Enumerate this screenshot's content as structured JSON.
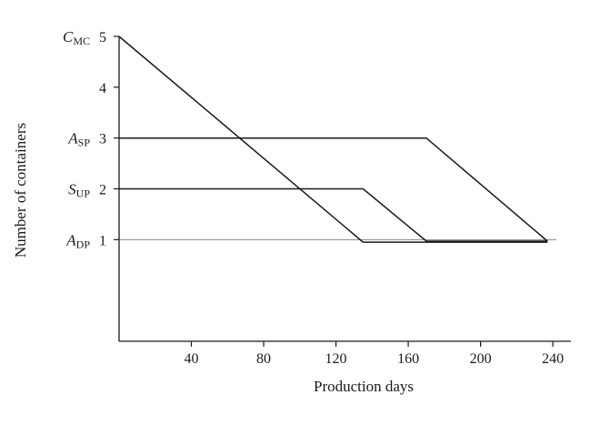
{
  "chart_data": {
    "type": "line",
    "xlabel": "Production days",
    "ylabel": "Number of containers",
    "xlim": [
      0,
      250
    ],
    "ylim": [
      -1,
      5
    ],
    "x_ticks": [
      40,
      80,
      120,
      160,
      200,
      240
    ],
    "y_ticks": [
      1,
      2,
      3,
      4,
      5
    ],
    "y_tick_labels": [
      {
        "value": 1,
        "symbol": "A",
        "subscript": "DP",
        "number": "1"
      },
      {
        "value": 2,
        "symbol": "S",
        "subscript": "UP",
        "number": "2"
      },
      {
        "value": 3,
        "symbol": "A",
        "subscript": "SP",
        "number": "3"
      },
      {
        "value": 4,
        "symbol": "",
        "subscript": "",
        "number": "4"
      },
      {
        "value": 5,
        "symbol": "C",
        "subscript": "MC",
        "number": "5"
      }
    ],
    "reference_line": {
      "y": 1,
      "x": [
        0,
        240
      ]
    },
    "series": [
      {
        "x": [
          0,
          135,
          237
        ],
        "y": [
          5,
          0.95,
          0.95
        ]
      },
      {
        "x": [
          0,
          135,
          170,
          237
        ],
        "y": [
          2,
          2,
          0.97,
          0.97
        ]
      },
      {
        "x": [
          0,
          170,
          237
        ],
        "y": [
          3,
          3,
          0.97
        ]
      }
    ],
    "colors": {
      "lines": "#1a1a1a",
      "reference": "#888888",
      "axis": "#1a1a1a"
    }
  }
}
